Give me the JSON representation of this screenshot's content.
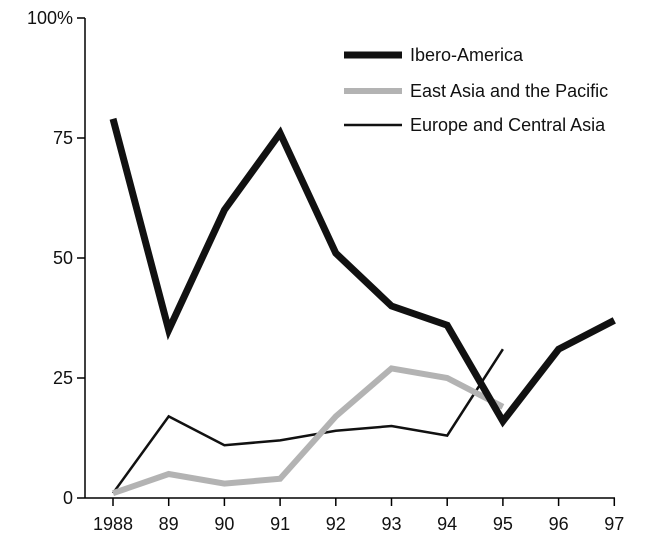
{
  "chart_data": {
    "type": "line",
    "x": [
      "1988",
      "89",
      "90",
      "91",
      "92",
      "93",
      "94",
      "95",
      "96",
      "97"
    ],
    "ylim": [
      0,
      100
    ],
    "yticks": [
      0,
      25,
      50,
      75,
      100
    ],
    "ytick_labels": [
      "0",
      "25",
      "50",
      "75",
      "100%"
    ],
    "legend_position": "top-right",
    "grid": false,
    "series": [
      {
        "name": "Ibero-America",
        "color": "#111111",
        "style": "thick",
        "values": [
          79,
          35,
          60,
          76,
          51,
          40,
          36,
          16,
          31,
          37
        ]
      },
      {
        "name": "East Asia and the Pacific",
        "color": "#b3b3b3",
        "style": "medium",
        "values": [
          1,
          5,
          3,
          4,
          17,
          27,
          25,
          19,
          null,
          null
        ]
      },
      {
        "name": "Europe and Central Asia",
        "color": "#111111",
        "style": "thin",
        "values": [
          1,
          17,
          11,
          12,
          14,
          15,
          13,
          31,
          null,
          null
        ]
      }
    ]
  }
}
